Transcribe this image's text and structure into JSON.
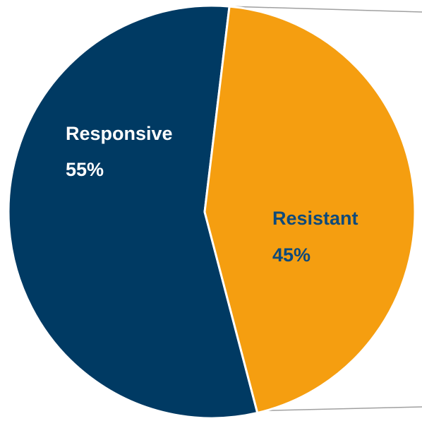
{
  "chart_data": {
    "type": "pie",
    "title": "",
    "slices": [
      {
        "label": "Responsive",
        "value": 55,
        "value_label": "55%",
        "color": "#003a63",
        "label_color": "#ffffff"
      },
      {
        "label": "Resistant",
        "value": 45,
        "value_label": "45%",
        "color": "#f59e10",
        "label_color": "#0f4a7a"
      }
    ],
    "legend": "none",
    "connector_line_color": "#a0a0a0"
  }
}
